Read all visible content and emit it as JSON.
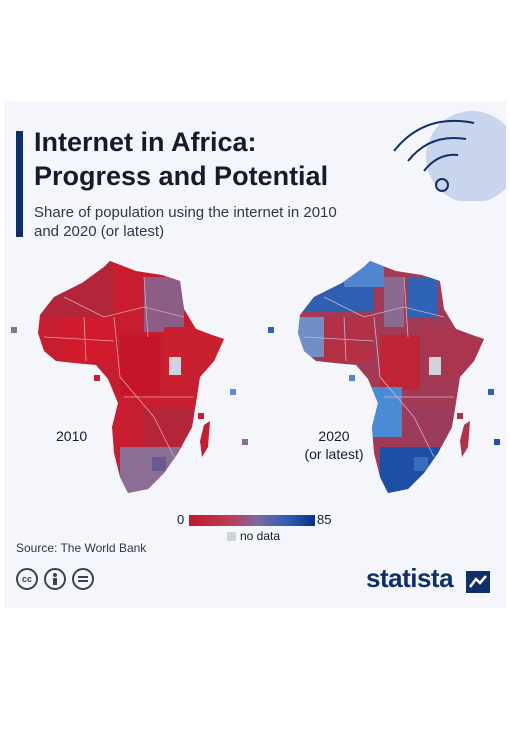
{
  "title_line1": "Internet in Africa:",
  "title_line2": "Progress and Potential",
  "subtitle": "Share of population using the internet in 2010 and 2020 (or latest)",
  "map_left_label": "2010",
  "map_right_label_line1": "2020",
  "map_right_label_line2": "(or latest)",
  "legend": {
    "min": "0",
    "max": "85",
    "no_data": "no data",
    "colors": [
      "#c5162a",
      "#7a6aa3",
      "#0b2f8a"
    ],
    "no_data_color": "#cfd3da"
  },
  "source": "Source: The World Bank",
  "license_icons": [
    "cc-icon",
    "by-person-icon",
    "nd-equals-icon"
  ],
  "brand": "statista",
  "colors": {
    "title_bar": "#0f2f6b",
    "low": "#c5162a",
    "high": "#0b2f8a"
  }
}
